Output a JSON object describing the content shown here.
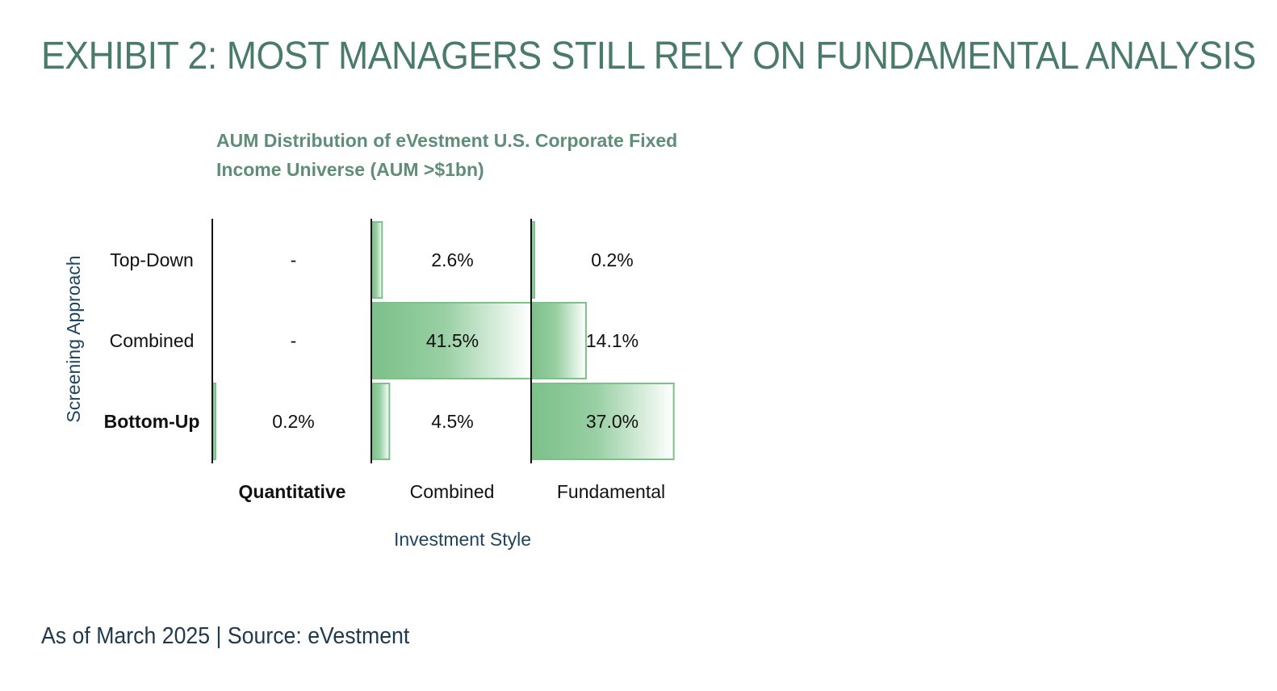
{
  "header": {
    "title": "EXHIBIT 2: MOST MANAGERS STILL RELY ON FUNDAMENTAL ANALYSIS"
  },
  "footer": {
    "source": "As of March 2025 | Source: eVestment"
  },
  "colors": {
    "title": "#4a7a6a",
    "subtitle": "#5e8f76",
    "axis_label": "#1f4560",
    "bar_fill_start": "#7cc08a",
    "bar_fill_end": "#ffffff",
    "bar_stroke": "#7cc08a"
  },
  "chart_data": {
    "type": "table",
    "title_lines": [
      "AUM Distribution of eVestment U.S. Corporate Fixed",
      "Income Universe (AUM >$1bn)"
    ],
    "xlabel": "Investment Style",
    "ylabel": "Screening Approach",
    "rows": [
      "Top-Down",
      "Combined",
      "Bottom-Up"
    ],
    "columns": [
      "Quantitative",
      "Combined",
      "Fundamental"
    ],
    "bold_row": "Bottom-Up",
    "bold_column": "Quantitative",
    "value_unit": "percent",
    "max_value": 41.5,
    "values": [
      [
        null,
        2.6,
        0.2
      ],
      [
        null,
        41.5,
        14.1
      ],
      [
        0.2,
        4.5,
        37.0
      ]
    ],
    "labels": [
      [
        "-",
        "2.6%",
        "0.2%"
      ],
      [
        "-",
        "41.5%",
        "14.1%"
      ],
      [
        "0.2%",
        "4.5%",
        "37.0%"
      ]
    ]
  }
}
